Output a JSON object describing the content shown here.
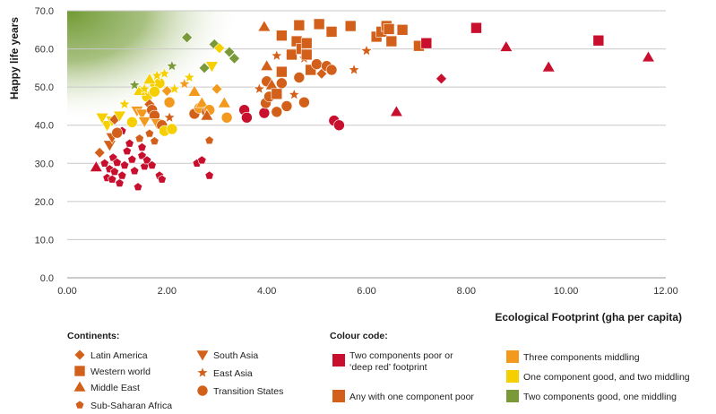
{
  "chart_data": {
    "type": "scatter",
    "xlabel": "Ecological Footprint (gha per capita)",
    "ylabel": "Happy life years",
    "xlim": [
      0,
      12
    ],
    "ylim": [
      0,
      70
    ],
    "x_ticks": [
      "0.00",
      "2.00",
      "4.00",
      "6.00",
      "8.00",
      "10.00",
      "12.00"
    ],
    "y_ticks": [
      "0.0",
      "10.0",
      "20.0",
      "30.0",
      "40.0",
      "50.0",
      "60.0",
      "70.0"
    ],
    "grid": "horizontal",
    "colors": {
      "red": "#c8102e",
      "dark_orange": "#d2601a",
      "orange": "#f39a1e",
      "yellow": "#f5cf00",
      "green": "#7a9a3a"
    },
    "continents_title": "Continents:",
    "continents": [
      {
        "key": "latin",
        "label": "Latin America",
        "shape": "diamond"
      },
      {
        "key": "western",
        "label": "Western world",
        "shape": "square"
      },
      {
        "key": "mideast",
        "label": "Middle East",
        "shape": "triangle-up"
      },
      {
        "key": "ssa",
        "label": "Sub-Saharan Africa",
        "shape": "pentagon"
      },
      {
        "key": "southasia",
        "label": "South Asia",
        "shape": "triangle-down"
      },
      {
        "key": "eastasia",
        "label": "East Asia",
        "shape": "star"
      },
      {
        "key": "transition",
        "label": "Transition States",
        "shape": "circle"
      }
    ],
    "colour_code_title": "Colour code:",
    "colour_code": [
      {
        "color": "red",
        "lines": [
          "Two components poor or",
          "‘deep red’ footprint"
        ]
      },
      {
        "color": "dark_orange",
        "lines": [
          "Any with one component poor"
        ]
      },
      {
        "color": "orange",
        "lines": [
          "Three components middling"
        ]
      },
      {
        "color": "yellow",
        "lines": [
          "One component good, and two middling"
        ]
      },
      {
        "color": "green",
        "lines": [
          "Two components good, one middling"
        ]
      }
    ],
    "points": [
      {
        "x": 0.58,
        "y": 29,
        "shape": "triangle-up",
        "color": "red"
      },
      {
        "x": 0.65,
        "y": 32.8,
        "shape": "diamond",
        "color": "dark_orange"
      },
      {
        "x": 0.75,
        "y": 30,
        "shape": "pentagon",
        "color": "red"
      },
      {
        "x": 0.8,
        "y": 26.2,
        "shape": "pentagon",
        "color": "red"
      },
      {
        "x": 0.85,
        "y": 28.5,
        "shape": "pentagon",
        "color": "red"
      },
      {
        "x": 0.9,
        "y": 25.8,
        "shape": "pentagon",
        "color": "red"
      },
      {
        "x": 0.95,
        "y": 27.8,
        "shape": "pentagon",
        "color": "red"
      },
      {
        "x": 0.92,
        "y": 31.5,
        "shape": "pentagon",
        "color": "red"
      },
      {
        "x": 1.0,
        "y": 30.2,
        "shape": "pentagon",
        "color": "red"
      },
      {
        "x": 1.05,
        "y": 24.8,
        "shape": "pentagon",
        "color": "red"
      },
      {
        "x": 1.1,
        "y": 26.8,
        "shape": "pentagon",
        "color": "red"
      },
      {
        "x": 1.15,
        "y": 29.5,
        "shape": "pentagon",
        "color": "red"
      },
      {
        "x": 1.2,
        "y": 33.2,
        "shape": "pentagon",
        "color": "red"
      },
      {
        "x": 1.3,
        "y": 31.0,
        "shape": "pentagon",
        "color": "red"
      },
      {
        "x": 1.35,
        "y": 28.0,
        "shape": "pentagon",
        "color": "red"
      },
      {
        "x": 1.42,
        "y": 23.8,
        "shape": "pentagon",
        "color": "red"
      },
      {
        "x": 1.5,
        "y": 32.0,
        "shape": "pentagon",
        "color": "red"
      },
      {
        "x": 1.55,
        "y": 29.2,
        "shape": "pentagon",
        "color": "red"
      },
      {
        "x": 1.6,
        "y": 30.8,
        "shape": "pentagon",
        "color": "red"
      },
      {
        "x": 1.7,
        "y": 29.5,
        "shape": "pentagon",
        "color": "red"
      },
      {
        "x": 1.85,
        "y": 26.8,
        "shape": "pentagon",
        "color": "red"
      },
      {
        "x": 1.9,
        "y": 25.8,
        "shape": "pentagon",
        "color": "red"
      },
      {
        "x": 1.1,
        "y": 38.5,
        "shape": "pentagon",
        "color": "red"
      },
      {
        "x": 1.25,
        "y": 35.2,
        "shape": "pentagon",
        "color": "red"
      },
      {
        "x": 1.5,
        "y": 34.2,
        "shape": "pentagon",
        "color": "red"
      },
      {
        "x": 1.45,
        "y": 36.5,
        "shape": "pentagon",
        "color": "dark_orange"
      },
      {
        "x": 1.75,
        "y": 35.8,
        "shape": "pentagon",
        "color": "dark_orange"
      },
      {
        "x": 1.65,
        "y": 37.8,
        "shape": "pentagon",
        "color": "dark_orange"
      },
      {
        "x": 0.85,
        "y": 34.8,
        "shape": "triangle-down",
        "color": "dark_orange"
      },
      {
        "x": 0.9,
        "y": 36.8,
        "shape": "triangle-down",
        "color": "dark_orange"
      },
      {
        "x": 0.8,
        "y": 40.0,
        "shape": "triangle-down",
        "color": "yellow"
      },
      {
        "x": 0.9,
        "y": 41.2,
        "shape": "triangle-down",
        "color": "yellow"
      },
      {
        "x": 0.95,
        "y": 41.5,
        "shape": "diamond",
        "color": "dark_orange"
      },
      {
        "x": 1.0,
        "y": 38.0,
        "shape": "circle",
        "color": "dark_orange"
      },
      {
        "x": 0.7,
        "y": 42.0,
        "shape": "triangle-down",
        "color": "yellow"
      },
      {
        "x": 1.05,
        "y": 42.5,
        "shape": "triangle-down",
        "color": "yellow"
      },
      {
        "x": 1.15,
        "y": 45.5,
        "shape": "star",
        "color": "yellow"
      },
      {
        "x": 1.3,
        "y": 40.8,
        "shape": "circle",
        "color": "yellow"
      },
      {
        "x": 1.4,
        "y": 43.8,
        "shape": "triangle-down",
        "color": "orange"
      },
      {
        "x": 1.5,
        "y": 43.0,
        "shape": "triangle-down",
        "color": "orange"
      },
      {
        "x": 1.55,
        "y": 41.0,
        "shape": "triangle-down",
        "color": "orange"
      },
      {
        "x": 1.6,
        "y": 47.5,
        "shape": "circle",
        "color": "yellow"
      },
      {
        "x": 1.65,
        "y": 45.5,
        "shape": "diamond",
        "color": "dark_orange"
      },
      {
        "x": 1.7,
        "y": 44.0,
        "shape": "circle",
        "color": "dark_orange"
      },
      {
        "x": 1.75,
        "y": 42.5,
        "shape": "circle",
        "color": "dark_orange"
      },
      {
        "x": 1.8,
        "y": 40.5,
        "shape": "triangle-down",
        "color": "orange"
      },
      {
        "x": 1.9,
        "y": 40.0,
        "shape": "circle",
        "color": "dark_orange"
      },
      {
        "x": 1.95,
        "y": 38.5,
        "shape": "circle",
        "color": "yellow"
      },
      {
        "x": 2.05,
        "y": 42.0,
        "shape": "star",
        "color": "dark_orange"
      },
      {
        "x": 2.1,
        "y": 39.0,
        "shape": "circle",
        "color": "yellow"
      },
      {
        "x": 1.35,
        "y": 50.5,
        "shape": "star",
        "color": "green"
      },
      {
        "x": 1.45,
        "y": 49.0,
        "shape": "triangle-up",
        "color": "yellow"
      },
      {
        "x": 1.55,
        "y": 49.5,
        "shape": "star",
        "color": "yellow"
      },
      {
        "x": 1.75,
        "y": 50.5,
        "shape": "diamond",
        "color": "yellow"
      },
      {
        "x": 1.85,
        "y": 51.0,
        "shape": "circle",
        "color": "yellow"
      },
      {
        "x": 1.8,
        "y": 53.0,
        "shape": "star",
        "color": "yellow"
      },
      {
        "x": 1.65,
        "y": 52.0,
        "shape": "triangle-up",
        "color": "yellow"
      },
      {
        "x": 1.75,
        "y": 48.8,
        "shape": "circle",
        "color": "yellow"
      },
      {
        "x": 1.95,
        "y": 53.5,
        "shape": "star",
        "color": "yellow"
      },
      {
        "x": 2.0,
        "y": 49.0,
        "shape": "diamond",
        "color": "orange"
      },
      {
        "x": 2.05,
        "y": 46.0,
        "shape": "circle",
        "color": "orange"
      },
      {
        "x": 2.1,
        "y": 55.5,
        "shape": "star",
        "color": "green"
      },
      {
        "x": 2.15,
        "y": 49.5,
        "shape": "star",
        "color": "yellow"
      },
      {
        "x": 2.4,
        "y": 63.0,
        "shape": "diamond",
        "color": "green"
      },
      {
        "x": 2.35,
        "y": 50.8,
        "shape": "star",
        "color": "orange"
      },
      {
        "x": 2.45,
        "y": 52.5,
        "shape": "star",
        "color": "yellow"
      },
      {
        "x": 2.55,
        "y": 48.8,
        "shape": "triangle-up",
        "color": "orange"
      },
      {
        "x": 2.55,
        "y": 43.0,
        "shape": "circle",
        "color": "dark_orange"
      },
      {
        "x": 2.65,
        "y": 44.5,
        "shape": "circle",
        "color": "orange"
      },
      {
        "x": 2.7,
        "y": 45.8,
        "shape": "triangle-up",
        "color": "orange"
      },
      {
        "x": 2.8,
        "y": 43.5,
        "shape": "circle",
        "color": "dark_orange"
      },
      {
        "x": 2.85,
        "y": 44.0,
        "shape": "circle",
        "color": "orange"
      },
      {
        "x": 2.9,
        "y": 55.5,
        "shape": "triangle-down",
        "color": "yellow"
      },
      {
        "x": 2.95,
        "y": 61.2,
        "shape": "diamond",
        "color": "green"
      },
      {
        "x": 3.0,
        "y": 49.5,
        "shape": "diamond",
        "color": "orange"
      },
      {
        "x": 3.05,
        "y": 60.2,
        "shape": "diamond",
        "color": "yellow"
      },
      {
        "x": 3.15,
        "y": 45.8,
        "shape": "triangle-up",
        "color": "orange"
      },
      {
        "x": 3.2,
        "y": 42.0,
        "shape": "circle",
        "color": "orange"
      },
      {
        "x": 3.25,
        "y": 59.2,
        "shape": "diamond",
        "color": "green"
      },
      {
        "x": 3.35,
        "y": 57.5,
        "shape": "diamond",
        "color": "green"
      },
      {
        "x": 2.75,
        "y": 55.0,
        "shape": "diamond",
        "color": "green"
      },
      {
        "x": 2.8,
        "y": 42.5,
        "shape": "triangle-up",
        "color": "dark_orange"
      },
      {
        "x": 2.6,
        "y": 30.0,
        "shape": "pentagon",
        "color": "red"
      },
      {
        "x": 2.7,
        "y": 30.8,
        "shape": "pentagon",
        "color": "red"
      },
      {
        "x": 2.85,
        "y": 26.8,
        "shape": "pentagon",
        "color": "red"
      },
      {
        "x": 2.85,
        "y": 36.0,
        "shape": "pentagon",
        "color": "dark_orange"
      },
      {
        "x": 3.55,
        "y": 44.0,
        "shape": "circle",
        "color": "red"
      },
      {
        "x": 3.6,
        "y": 42.0,
        "shape": "circle",
        "color": "red"
      },
      {
        "x": 3.85,
        "y": 49.5,
        "shape": "star",
        "color": "dark_orange"
      },
      {
        "x": 3.95,
        "y": 65.8,
        "shape": "triangle-up",
        "color": "dark_orange"
      },
      {
        "x": 3.95,
        "y": 43.2,
        "shape": "circle",
        "color": "red"
      },
      {
        "x": 3.98,
        "y": 45.8,
        "shape": "circle",
        "color": "dark_orange"
      },
      {
        "x": 4.0,
        "y": 51.5,
        "shape": "circle",
        "color": "dark_orange"
      },
      {
        "x": 4.0,
        "y": 55.5,
        "shape": "triangle-up",
        "color": "dark_orange"
      },
      {
        "x": 4.05,
        "y": 47.5,
        "shape": "circle",
        "color": "dark_orange"
      },
      {
        "x": 4.1,
        "y": 50.5,
        "shape": "triangle-up",
        "color": "dark_orange"
      },
      {
        "x": 4.2,
        "y": 58.2,
        "shape": "star",
        "color": "dark_orange"
      },
      {
        "x": 4.2,
        "y": 48.2,
        "shape": "square",
        "color": "dark_orange"
      },
      {
        "x": 4.2,
        "y": 43.5,
        "shape": "circle",
        "color": "dark_orange"
      },
      {
        "x": 4.3,
        "y": 63.5,
        "shape": "square",
        "color": "dark_orange"
      },
      {
        "x": 4.3,
        "y": 51.0,
        "shape": "circle",
        "color": "dark_orange"
      },
      {
        "x": 4.3,
        "y": 54.0,
        "shape": "square",
        "color": "dark_orange"
      },
      {
        "x": 4.4,
        "y": 45.0,
        "shape": "circle",
        "color": "dark_orange"
      },
      {
        "x": 4.5,
        "y": 58.5,
        "shape": "square",
        "color": "dark_orange"
      },
      {
        "x": 4.55,
        "y": 48.0,
        "shape": "star",
        "color": "dark_orange"
      },
      {
        "x": 4.6,
        "y": 62.0,
        "shape": "square",
        "color": "dark_orange"
      },
      {
        "x": 4.65,
        "y": 52.5,
        "shape": "circle",
        "color": "dark_orange"
      },
      {
        "x": 4.65,
        "y": 66.2,
        "shape": "square",
        "color": "dark_orange"
      },
      {
        "x": 4.7,
        "y": 60.0,
        "shape": "square",
        "color": "dark_orange"
      },
      {
        "x": 4.75,
        "y": 57.5,
        "shape": "star",
        "color": "dark_orange"
      },
      {
        "x": 4.75,
        "y": 46.0,
        "shape": "circle",
        "color": "dark_orange"
      },
      {
        "x": 4.8,
        "y": 58.5,
        "shape": "square",
        "color": "dark_orange"
      },
      {
        "x": 4.8,
        "y": 61.5,
        "shape": "square",
        "color": "dark_orange"
      },
      {
        "x": 4.88,
        "y": 54.5,
        "shape": "square",
        "color": "dark_orange"
      },
      {
        "x": 5.0,
        "y": 56.0,
        "shape": "circle",
        "color": "dark_orange"
      },
      {
        "x": 5.05,
        "y": 66.5,
        "shape": "square",
        "color": "dark_orange"
      },
      {
        "x": 5.1,
        "y": 53.5,
        "shape": "diamond",
        "color": "dark_orange"
      },
      {
        "x": 5.2,
        "y": 55.5,
        "shape": "circle",
        "color": "dark_orange"
      },
      {
        "x": 5.3,
        "y": 64.5,
        "shape": "square",
        "color": "dark_orange"
      },
      {
        "x": 5.3,
        "y": 54.5,
        "shape": "circle",
        "color": "dark_orange"
      },
      {
        "x": 5.35,
        "y": 41.2,
        "shape": "circle",
        "color": "red"
      },
      {
        "x": 5.45,
        "y": 40.0,
        "shape": "circle",
        "color": "red"
      },
      {
        "x": 5.68,
        "y": 66.0,
        "shape": "square",
        "color": "dark_orange"
      },
      {
        "x": 5.75,
        "y": 54.5,
        "shape": "star",
        "color": "dark_orange"
      },
      {
        "x": 6.0,
        "y": 59.5,
        "shape": "star",
        "color": "dark_orange"
      },
      {
        "x": 6.2,
        "y": 63.2,
        "shape": "square",
        "color": "dark_orange"
      },
      {
        "x": 6.3,
        "y": 64.5,
        "shape": "square",
        "color": "dark_orange"
      },
      {
        "x": 6.4,
        "y": 66.0,
        "shape": "square",
        "color": "dark_orange"
      },
      {
        "x": 6.45,
        "y": 65.2,
        "shape": "square",
        "color": "dark_orange"
      },
      {
        "x": 6.5,
        "y": 62.0,
        "shape": "square",
        "color": "dark_orange"
      },
      {
        "x": 6.6,
        "y": 43.5,
        "shape": "triangle-up",
        "color": "red"
      },
      {
        "x": 6.72,
        "y": 65.0,
        "shape": "square",
        "color": "dark_orange"
      },
      {
        "x": 7.05,
        "y": 60.8,
        "shape": "square",
        "color": "dark_orange"
      },
      {
        "x": 7.2,
        "y": 61.5,
        "shape": "square",
        "color": "red"
      },
      {
        "x": 7.5,
        "y": 52.2,
        "shape": "diamond",
        "color": "red"
      },
      {
        "x": 8.2,
        "y": 65.5,
        "shape": "square",
        "color": "red"
      },
      {
        "x": 8.8,
        "y": 60.5,
        "shape": "triangle-up",
        "color": "red"
      },
      {
        "x": 9.65,
        "y": 55.2,
        "shape": "triangle-up",
        "color": "red"
      },
      {
        "x": 10.65,
        "y": 62.2,
        "shape": "square",
        "color": "red"
      },
      {
        "x": 11.65,
        "y": 57.8,
        "shape": "triangle-up",
        "color": "red"
      }
    ]
  }
}
